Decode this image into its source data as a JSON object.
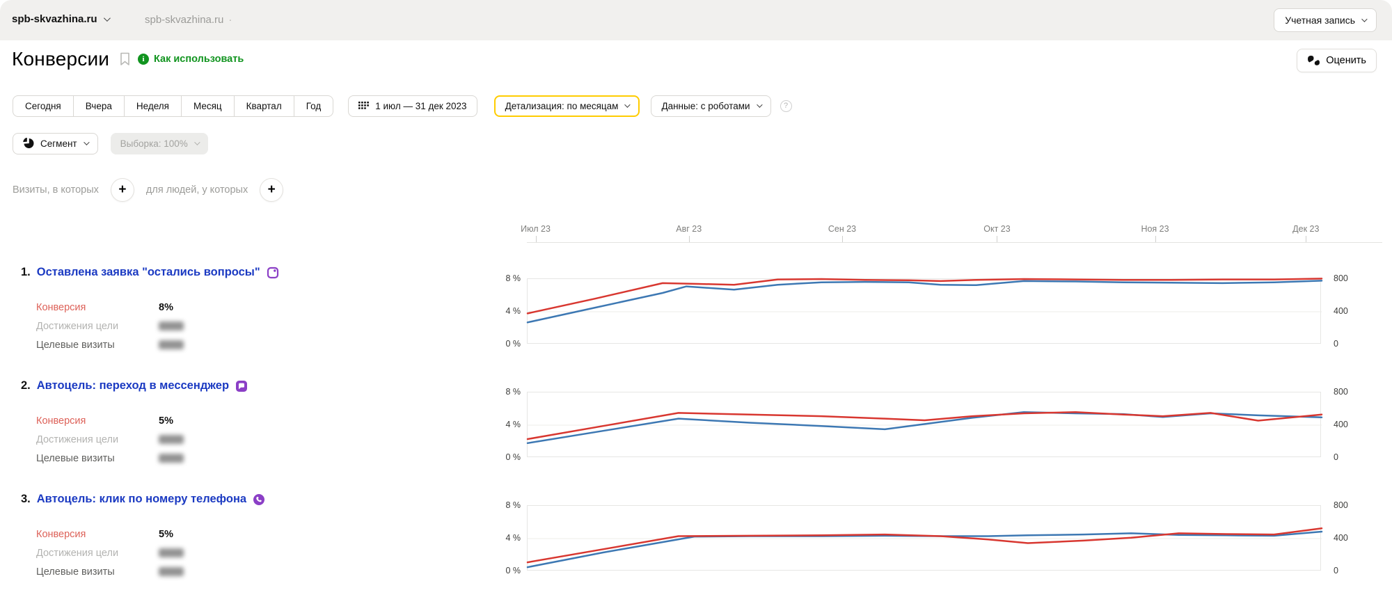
{
  "topbar": {
    "counter": "spb-skvazhina.ru",
    "counter_secondary": "spb-skvazhina.ru",
    "counter_secondary_suffix": "·",
    "account_label": "Учетная запись"
  },
  "header": {
    "title": "Конверсии",
    "howto_label": "Как использовать",
    "rate_label": "Оценить"
  },
  "filters": {
    "periods": [
      "Сегодня",
      "Вчера",
      "Неделя",
      "Месяц",
      "Квартал",
      "Год"
    ],
    "date_range": "1 июл — 31 дек 2023",
    "detail_label": "Детализация: по месяцам",
    "data_label": "Данные: с роботами",
    "help_glyph": "?",
    "segment_label": "Сегмент",
    "sample_label": "Выборка: 100%"
  },
  "builder": {
    "visits_label": "Визиты, в которых",
    "people_label": "для людей, у которых",
    "plus_glyph": "+"
  },
  "axis": {
    "months": [
      "Июл 23",
      "Авг 23",
      "Сен 23",
      "Окт 23",
      "Ноя 23",
      "Дек 23"
    ],
    "month_positions": [
      0.011,
      0.204,
      0.397,
      0.592,
      0.791,
      0.981
    ],
    "left_ticks": [
      "8 %",
      "4 %",
      "0 %"
    ],
    "right_ticks": [
      "800",
      "400",
      "0"
    ]
  },
  "stat_labels": {
    "conversion": "Конверсия",
    "goal_reaches": "Достижения цели",
    "goal_visits": "Целевые визиты"
  },
  "goals": [
    {
      "num": "1.",
      "title": "Оставлена заявка \"остались вопросы\"",
      "icon": "form-goal-icon",
      "conversion": "8%",
      "goal_reaches_redacted": true,
      "goal_visits_redacted": true
    },
    {
      "num": "2.",
      "title": "Автоцель: переход в мессенджер",
      "icon": "messenger-goal-icon",
      "conversion": "5%",
      "goal_reaches_redacted": true,
      "goal_visits_redacted": true
    },
    {
      "num": "3.",
      "title": "Автоцель: клик по номеру телефона",
      "icon": "phone-goal-icon",
      "conversion": "5%",
      "goal_reaches_redacted": true,
      "goal_visits_redacted": true
    }
  ],
  "colors": {
    "red": "#d83730",
    "blue": "#3d78b3",
    "link_blue": "#1b3ac2",
    "accent_yellow": "#ffcc00",
    "green": "#11941f",
    "purple": "#8b3fc6",
    "topbar_bg": "#f1f0ee",
    "grid": "#ececea"
  },
  "chart_data": [
    {
      "type": "line",
      "title": "Оставлена заявка \"остались вопросы\"",
      "x_range": "1 июл 2023 — 31 дек 2023",
      "x_unit": "fraction of date range",
      "y_unit": "%",
      "ylim": [
        0,
        8
      ],
      "y2lim": [
        0,
        800
      ],
      "grid": "horizontal at 4%",
      "series": [
        {
          "name": "blue",
          "color": "blue",
          "points": [
            [
              0,
              2.7
            ],
            [
              0.085,
              4.5
            ],
            [
              0.17,
              6.3
            ],
            [
              0.2,
              7.1
            ],
            [
              0.26,
              6.7
            ],
            [
              0.315,
              7.3
            ],
            [
              0.37,
              7.6
            ],
            [
              0.425,
              7.65
            ],
            [
              0.48,
              7.6
            ],
            [
              0.52,
              7.3
            ],
            [
              0.565,
              7.25
            ],
            [
              0.625,
              7.75
            ],
            [
              0.69,
              7.7
            ],
            [
              0.75,
              7.6
            ],
            [
              0.81,
              7.55
            ],
            [
              0.875,
              7.5
            ],
            [
              0.94,
              7.6
            ],
            [
              1,
              7.8
            ]
          ]
        },
        {
          "name": "red",
          "color": "red",
          "points": [
            [
              0,
              3.8
            ],
            [
              0.085,
              5.6
            ],
            [
              0.17,
              7.5
            ],
            [
              0.215,
              7.4
            ],
            [
              0.26,
              7.3
            ],
            [
              0.315,
              7.95
            ],
            [
              0.37,
              8.0
            ],
            [
              0.425,
              7.9
            ],
            [
              0.48,
              7.85
            ],
            [
              0.52,
              7.75
            ],
            [
              0.565,
              7.9
            ],
            [
              0.625,
              8.0
            ],
            [
              0.69,
              7.95
            ],
            [
              0.75,
              7.9
            ],
            [
              0.81,
              7.9
            ],
            [
              0.875,
              7.95
            ],
            [
              0.94,
              7.95
            ],
            [
              1,
              8.05
            ]
          ]
        }
      ]
    },
    {
      "type": "line",
      "title": "Автоцель: переход в мессенджер",
      "x_range": "1 июл 2023 — 31 дек 2023",
      "x_unit": "fraction of date range",
      "y_unit": "%",
      "ylim": [
        0,
        8
      ],
      "y2lim": [
        0,
        800
      ],
      "grid": "horizontal at 4%",
      "series": [
        {
          "name": "blue",
          "color": "blue",
          "points": [
            [
              0,
              1.8
            ],
            [
              0.095,
              3.3
            ],
            [
              0.19,
              4.8
            ],
            [
              0.28,
              4.3
            ],
            [
              0.37,
              3.9
            ],
            [
              0.45,
              3.5
            ],
            [
              0.56,
              4.9
            ],
            [
              0.625,
              5.6
            ],
            [
              0.69,
              5.45
            ],
            [
              0.75,
              5.35
            ],
            [
              0.8,
              5.0
            ],
            [
              0.86,
              5.45
            ],
            [
              0.92,
              5.2
            ],
            [
              1,
              4.95
            ]
          ]
        },
        {
          "name": "red",
          "color": "red",
          "points": [
            [
              0,
              2.3
            ],
            [
              0.095,
              3.9
            ],
            [
              0.19,
              5.5
            ],
            [
              0.28,
              5.3
            ],
            [
              0.37,
              5.1
            ],
            [
              0.45,
              4.8
            ],
            [
              0.5,
              4.6
            ],
            [
              0.56,
              5.1
            ],
            [
              0.625,
              5.45
            ],
            [
              0.69,
              5.6
            ],
            [
              0.75,
              5.3
            ],
            [
              0.8,
              5.1
            ],
            [
              0.86,
              5.5
            ],
            [
              0.92,
              4.55
            ],
            [
              1,
              5.3
            ]
          ]
        }
      ]
    },
    {
      "type": "line",
      "title": "Автоцель: клик по номеру телефона",
      "x_range": "1 июл 2023 — 31 дек 2023",
      "x_unit": "fraction of date range",
      "y_unit": "%",
      "ylim": [
        0,
        8
      ],
      "y2lim": [
        0,
        800
      ],
      "grid": "horizontal at 4%",
      "series": [
        {
          "name": "blue",
          "color": "blue",
          "points": [
            [
              0,
              0.5
            ],
            [
              0.095,
              2.3
            ],
            [
              0.21,
              4.25
            ],
            [
              0.28,
              4.3
            ],
            [
              0.37,
              4.3
            ],
            [
              0.45,
              4.35
            ],
            [
              0.52,
              4.3
            ],
            [
              0.58,
              4.3
            ],
            [
              0.63,
              4.4
            ],
            [
              0.7,
              4.5
            ],
            [
              0.76,
              4.65
            ],
            [
              0.82,
              4.45
            ],
            [
              0.88,
              4.4
            ],
            [
              0.94,
              4.35
            ],
            [
              1,
              4.85
            ]
          ]
        },
        {
          "name": "red",
          "color": "red",
          "points": [
            [
              0,
              1.1
            ],
            [
              0.095,
              2.7
            ],
            [
              0.19,
              4.3
            ],
            [
              0.28,
              4.35
            ],
            [
              0.37,
              4.4
            ],
            [
              0.45,
              4.5
            ],
            [
              0.52,
              4.3
            ],
            [
              0.58,
              3.9
            ],
            [
              0.63,
              3.45
            ],
            [
              0.7,
              3.75
            ],
            [
              0.76,
              4.1
            ],
            [
              0.82,
              4.65
            ],
            [
              0.88,
              4.55
            ],
            [
              0.94,
              4.5
            ],
            [
              1,
              5.25
            ]
          ]
        }
      ]
    }
  ]
}
